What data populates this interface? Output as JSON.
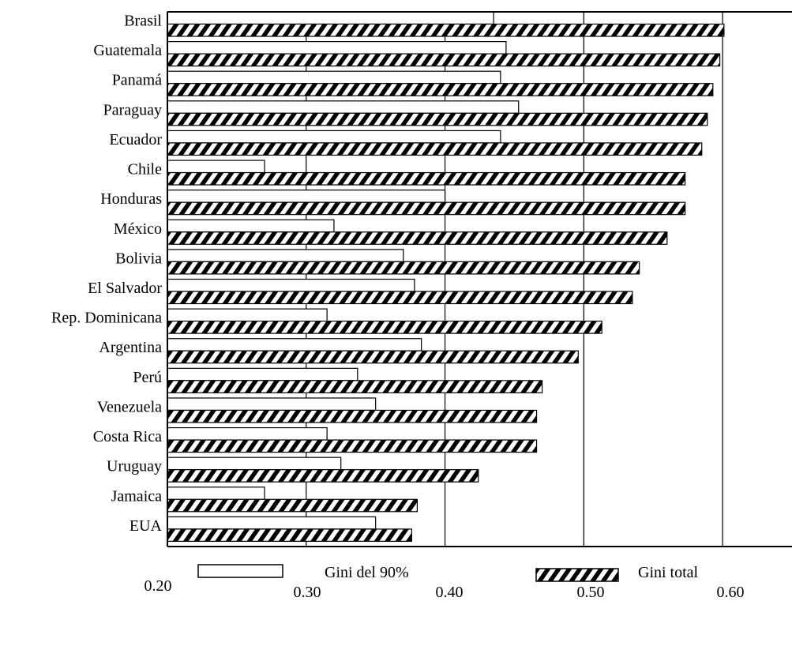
{
  "chart_data": {
    "type": "bar",
    "orientation": "horizontal",
    "title": "",
    "xlabel": "",
    "ylabel": "",
    "xlim": [
      0.2,
      0.65
    ],
    "xticks": [
      "0.20",
      "0.30",
      "0.40",
      "0.50",
      "0.60"
    ],
    "gridlines": "vertical",
    "categories": [
      "Brasil",
      "Guatemala",
      "Panamá",
      "Paraguay",
      "Ecuador",
      "Chile",
      "Honduras",
      "México",
      "Bolivia",
      "El Salvador",
      "Rep. Dominicana",
      "Argentina",
      "Perú",
      "Venezuela",
      "Costa Rica",
      "Uruguay",
      "Jamaica",
      "EUA"
    ],
    "series": [
      {
        "name": "Gini del 90%",
        "fill": "white",
        "values": [
          0.435,
          0.444,
          0.44,
          0.453,
          0.44,
          0.27,
          0.4,
          0.32,
          0.37,
          0.378,
          0.315,
          0.383,
          0.337,
          0.35,
          0.315,
          0.325,
          0.27,
          0.35
        ]
      },
      {
        "name": "Gini total",
        "fill": "hatched",
        "values": [
          0.601,
          0.598,
          0.593,
          0.589,
          0.585,
          0.573,
          0.573,
          0.56,
          0.54,
          0.535,
          0.513,
          0.496,
          0.47,
          0.466,
          0.466,
          0.424,
          0.38,
          0.376
        ]
      }
    ],
    "legend_position": "bottom"
  }
}
